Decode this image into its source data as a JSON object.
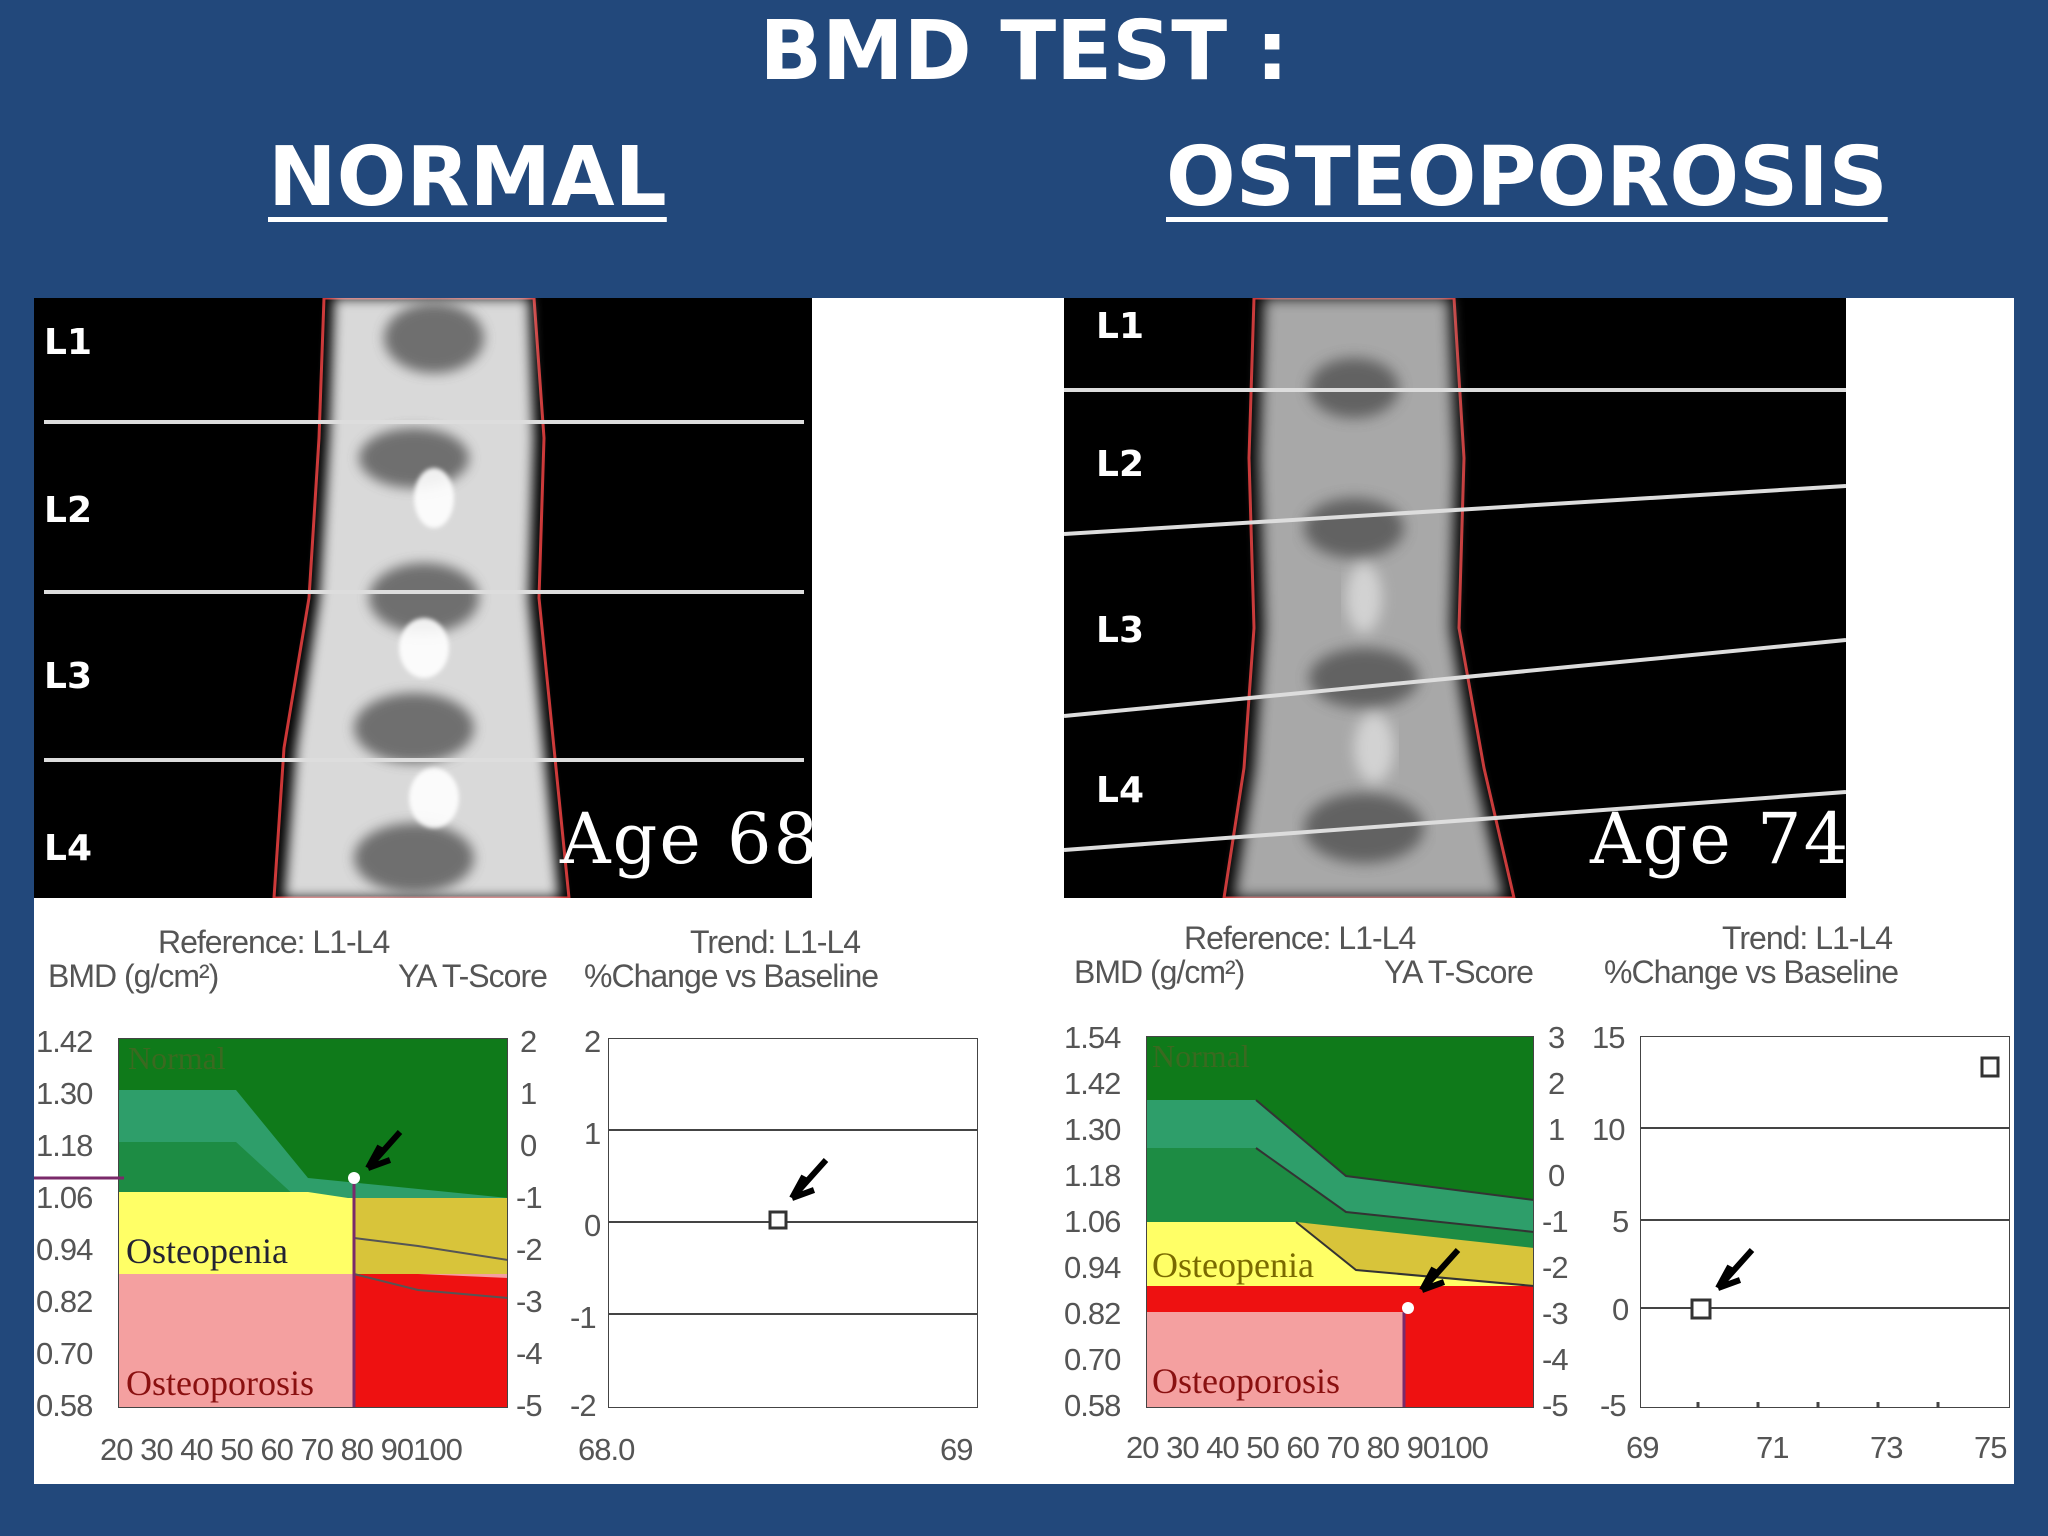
{
  "slide": {
    "title": "BMD TEST :",
    "left_heading": "NORMAL",
    "right_heading": "OSTEOPOROSIS"
  },
  "left": {
    "scan": {
      "vertebrae": [
        "L1",
        "L2",
        "L3",
        "L4"
      ],
      "age_label": "Age 68"
    },
    "reference_chart": {
      "title": "Reference: L1-L4",
      "y_label_left": "BMD (g/cm²)",
      "y_label_right": "YA T-Score",
      "y_ticks": [
        "1.42",
        "1.30",
        "1.18",
        "1.06",
        "0.94",
        "0.82",
        "0.70",
        "0.58"
      ],
      "t_ticks": [
        "2",
        "1",
        "0",
        "-1",
        "-2",
        "-3",
        "-4",
        "-5"
      ],
      "x_ticks": "20 30 40 50 60 70 80 90100",
      "zone_labels": {
        "normal": "Normal",
        "osteopenia": "Osteopenia",
        "osteoporosis": "Osteoporosis"
      }
    },
    "trend_chart": {
      "title": "Trend: L1-L4",
      "subtitle": "%Change vs Baseline",
      "y_ticks": [
        "2",
        "1",
        "0",
        "-1",
        "-2"
      ],
      "x_start": "68.0",
      "x_end": "69"
    }
  },
  "right": {
    "scan": {
      "vertebrae": [
        "L1",
        "L2",
        "L3",
        "L4"
      ],
      "age_label": "Age 74"
    },
    "reference_chart": {
      "title": "Reference: L1-L4",
      "y_label_left": "BMD (g/cm²)",
      "y_label_right": "YA T-Score",
      "y_ticks": [
        "1.54",
        "1.42",
        "1.30",
        "1.18",
        "1.06",
        "0.94",
        "0.82",
        "0.70",
        "0.58"
      ],
      "t_ticks": [
        "3",
        "2",
        "1",
        "0",
        "-1",
        "-2",
        "-3",
        "-4",
        "-5"
      ],
      "x_ticks": "20 30 40 50 60 70 80 90100",
      "zone_labels": {
        "normal": "Normal",
        "osteopenia": "Osteopenia",
        "osteoporosis": "Osteoporosis"
      }
    },
    "trend_chart": {
      "title": "Trend: L1-L4",
      "subtitle": "%Change vs Baseline",
      "y_ticks": [
        "15",
        "10",
        "5",
        "0",
        "-5"
      ],
      "x_ticks": [
        "69",
        "71",
        "73",
        "75"
      ]
    }
  },
  "colors": {
    "background": "#22487b",
    "normal_dark": "#0f7a1a",
    "normal_band": "#2e9e6a",
    "osteopenia": "#ffff66",
    "osteopenia_dark": "#d8c43a",
    "osteoporosis_light": "#f4a0a0",
    "osteoporosis_dark": "#ee1111"
  }
}
